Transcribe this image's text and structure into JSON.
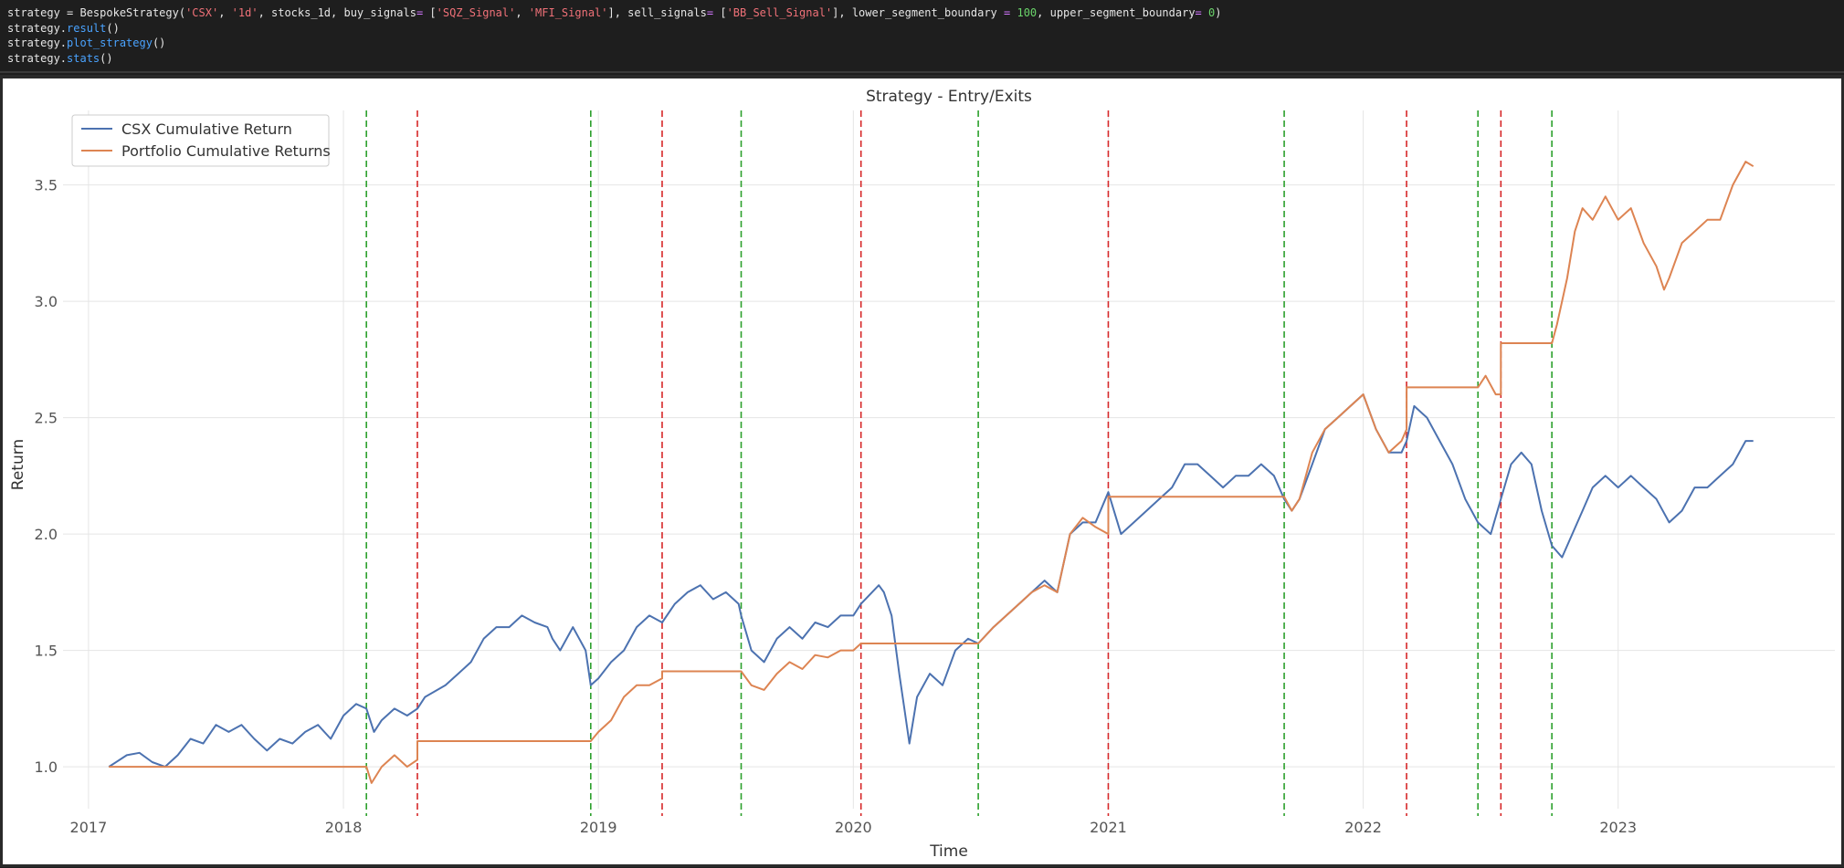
{
  "code_cell": {
    "lines": [
      [
        {
          "t": "strategy = BespokeStrategy(",
          "c": ""
        },
        {
          "t": "'CSX'",
          "c": "str"
        },
        {
          "t": ", ",
          "c": ""
        },
        {
          "t": "'1d'",
          "c": "str"
        },
        {
          "t": ", stocks_1d, buy_signals",
          "c": ""
        },
        {
          "t": "=",
          "c": "op"
        },
        {
          "t": " [",
          "c": ""
        },
        {
          "t": "'SQZ_Signal'",
          "c": "str"
        },
        {
          "t": ", ",
          "c": ""
        },
        {
          "t": "'MFI_Signal'",
          "c": "str"
        },
        {
          "t": "], sell_signals",
          "c": ""
        },
        {
          "t": "=",
          "c": "op"
        },
        {
          "t": " [",
          "c": ""
        },
        {
          "t": "'BB_Sell_Signal'",
          "c": "str"
        },
        {
          "t": "], lower_segment_boundary ",
          "c": ""
        },
        {
          "t": "=",
          "c": "op"
        },
        {
          "t": " ",
          "c": ""
        },
        {
          "t": "100",
          "c": "num"
        },
        {
          "t": ", upper_segment_boundary",
          "c": ""
        },
        {
          "t": "=",
          "c": "op"
        },
        {
          "t": " ",
          "c": ""
        },
        {
          "t": "0",
          "c": "num"
        },
        {
          "t": ")",
          "c": ""
        }
      ],
      [
        {
          "t": "strategy.",
          "c": ""
        },
        {
          "t": "result",
          "c": "fn"
        },
        {
          "t": "()",
          "c": ""
        }
      ],
      [
        {
          "t": "strategy.",
          "c": ""
        },
        {
          "t": "plot_strategy",
          "c": "fn"
        },
        {
          "t": "()",
          "c": ""
        }
      ],
      [
        {
          "t": "strategy.",
          "c": ""
        },
        {
          "t": "stats",
          "c": "fn"
        },
        {
          "t": "()",
          "c": ""
        }
      ]
    ]
  },
  "chart_data": {
    "type": "line",
    "title": "Strategy - Entry/Exits",
    "xlabel": "Time",
    "ylabel": "Return",
    "xlim": [
      2016.9,
      2023.85
    ],
    "ylim": [
      0.82,
      3.82
    ],
    "x_ticks": [
      2017,
      2018,
      2019,
      2020,
      2021,
      2022,
      2023
    ],
    "x_tick_labels": [
      "2017",
      "2018",
      "2019",
      "2020",
      "2021",
      "2022",
      "2023"
    ],
    "y_ticks": [
      1.0,
      1.5,
      2.0,
      2.5,
      3.0,
      3.5
    ],
    "y_tick_labels": [
      "1.0",
      "1.5",
      "2.0",
      "2.5",
      "3.0",
      "3.5"
    ],
    "grid": true,
    "legend_position": "top-left",
    "colors": {
      "csx": "#4c72b0",
      "portfolio": "#dd8452",
      "buy": "#2ca02c",
      "sell": "#d62728"
    },
    "buy_signal_lines": [
      2018.09,
      2018.97,
      2019.56,
      2020.49,
      2021.69,
      2022.45,
      2022.74
    ],
    "sell_signal_lines": [
      2018.29,
      2019.25,
      2020.03,
      2021.0,
      2022.17,
      2022.54
    ],
    "series": [
      {
        "name": "CSX Cumulative Return",
        "key": "csx",
        "points": [
          [
            2017.08,
            1.0
          ],
          [
            2017.15,
            1.05
          ],
          [
            2017.2,
            1.06
          ],
          [
            2017.25,
            1.02
          ],
          [
            2017.3,
            1.0
          ],
          [
            2017.35,
            1.05
          ],
          [
            2017.4,
            1.12
          ],
          [
            2017.45,
            1.1
          ],
          [
            2017.5,
            1.18
          ],
          [
            2017.55,
            1.15
          ],
          [
            2017.6,
            1.18
          ],
          [
            2017.65,
            1.12
          ],
          [
            2017.7,
            1.07
          ],
          [
            2017.75,
            1.12
          ],
          [
            2017.8,
            1.1
          ],
          [
            2017.85,
            1.15
          ],
          [
            2017.9,
            1.18
          ],
          [
            2017.95,
            1.12
          ],
          [
            2018.0,
            1.22
          ],
          [
            2018.05,
            1.27
          ],
          [
            2018.09,
            1.25
          ],
          [
            2018.12,
            1.15
          ],
          [
            2018.15,
            1.2
          ],
          [
            2018.2,
            1.25
          ],
          [
            2018.25,
            1.22
          ],
          [
            2018.29,
            1.25
          ],
          [
            2018.32,
            1.3
          ],
          [
            2018.4,
            1.35
          ],
          [
            2018.45,
            1.4
          ],
          [
            2018.5,
            1.45
          ],
          [
            2018.55,
            1.55
          ],
          [
            2018.6,
            1.6
          ],
          [
            2018.65,
            1.6
          ],
          [
            2018.7,
            1.65
          ],
          [
            2018.75,
            1.62
          ],
          [
            2018.8,
            1.6
          ],
          [
            2018.82,
            1.55
          ],
          [
            2018.85,
            1.5
          ],
          [
            2018.9,
            1.6
          ],
          [
            2018.95,
            1.5
          ],
          [
            2018.97,
            1.35
          ],
          [
            2019.0,
            1.38
          ],
          [
            2019.05,
            1.45
          ],
          [
            2019.1,
            1.5
          ],
          [
            2019.15,
            1.6
          ],
          [
            2019.2,
            1.65
          ],
          [
            2019.25,
            1.62
          ],
          [
            2019.3,
            1.7
          ],
          [
            2019.35,
            1.75
          ],
          [
            2019.4,
            1.78
          ],
          [
            2019.45,
            1.72
          ],
          [
            2019.5,
            1.75
          ],
          [
            2019.55,
            1.7
          ],
          [
            2019.56,
            1.65
          ],
          [
            2019.6,
            1.5
          ],
          [
            2019.65,
            1.45
          ],
          [
            2019.7,
            1.55
          ],
          [
            2019.75,
            1.6
          ],
          [
            2019.8,
            1.55
          ],
          [
            2019.85,
            1.62
          ],
          [
            2019.9,
            1.6
          ],
          [
            2019.95,
            1.65
          ],
          [
            2020.0,
            1.65
          ],
          [
            2020.03,
            1.7
          ],
          [
            2020.1,
            1.78
          ],
          [
            2020.12,
            1.75
          ],
          [
            2020.15,
            1.65
          ],
          [
            2020.18,
            1.4
          ],
          [
            2020.2,
            1.25
          ],
          [
            2020.22,
            1.1
          ],
          [
            2020.25,
            1.3
          ],
          [
            2020.3,
            1.4
          ],
          [
            2020.35,
            1.35
          ],
          [
            2020.4,
            1.5
          ],
          [
            2020.45,
            1.55
          ],
          [
            2020.49,
            1.53
          ],
          [
            2020.55,
            1.6
          ],
          [
            2020.6,
            1.65
          ],
          [
            2020.65,
            1.7
          ],
          [
            2020.7,
            1.75
          ],
          [
            2020.75,
            1.8
          ],
          [
            2020.8,
            1.75
          ],
          [
            2020.85,
            2.0
          ],
          [
            2020.9,
            2.05
          ],
          [
            2020.95,
            2.05
          ],
          [
            2021.0,
            2.18
          ],
          [
            2021.05,
            2.0
          ],
          [
            2021.1,
            2.05
          ],
          [
            2021.15,
            2.1
          ],
          [
            2021.2,
            2.15
          ],
          [
            2021.25,
            2.2
          ],
          [
            2021.3,
            2.3
          ],
          [
            2021.35,
            2.3
          ],
          [
            2021.4,
            2.25
          ],
          [
            2021.45,
            2.2
          ],
          [
            2021.5,
            2.25
          ],
          [
            2021.55,
            2.25
          ],
          [
            2021.6,
            2.3
          ],
          [
            2021.65,
            2.25
          ],
          [
            2021.69,
            2.15
          ],
          [
            2021.72,
            2.1
          ],
          [
            2021.75,
            2.15
          ],
          [
            2021.8,
            2.3
          ],
          [
            2021.85,
            2.45
          ],
          [
            2021.9,
            2.5
          ],
          [
            2021.95,
            2.55
          ],
          [
            2022.0,
            2.6
          ],
          [
            2022.05,
            2.45
          ],
          [
            2022.1,
            2.35
          ],
          [
            2022.15,
            2.35
          ],
          [
            2022.17,
            2.4
          ],
          [
            2022.2,
            2.55
          ],
          [
            2022.25,
            2.5
          ],
          [
            2022.3,
            2.4
          ],
          [
            2022.35,
            2.3
          ],
          [
            2022.4,
            2.15
          ],
          [
            2022.45,
            2.05
          ],
          [
            2022.5,
            2.0
          ],
          [
            2022.54,
            2.15
          ],
          [
            2022.58,
            2.3
          ],
          [
            2022.62,
            2.35
          ],
          [
            2022.66,
            2.3
          ],
          [
            2022.7,
            2.1
          ],
          [
            2022.74,
            1.95
          ],
          [
            2022.78,
            1.9
          ],
          [
            2022.82,
            2.0
          ],
          [
            2022.86,
            2.1
          ],
          [
            2022.9,
            2.2
          ],
          [
            2022.95,
            2.25
          ],
          [
            2023.0,
            2.2
          ],
          [
            2023.05,
            2.25
          ],
          [
            2023.1,
            2.2
          ],
          [
            2023.15,
            2.15
          ],
          [
            2023.2,
            2.05
          ],
          [
            2023.25,
            2.1
          ],
          [
            2023.3,
            2.2
          ],
          [
            2023.35,
            2.2
          ],
          [
            2023.4,
            2.25
          ],
          [
            2023.45,
            2.3
          ],
          [
            2023.5,
            2.4
          ],
          [
            2023.53,
            2.4
          ]
        ]
      },
      {
        "name": "Portfolio Cumulative Returns",
        "key": "portfolio",
        "points": [
          [
            2017.08,
            1.0
          ],
          [
            2018.09,
            1.0
          ],
          [
            2018.11,
            0.93
          ],
          [
            2018.15,
            1.0
          ],
          [
            2018.2,
            1.05
          ],
          [
            2018.25,
            1.0
          ],
          [
            2018.29,
            1.03
          ],
          [
            2018.29,
            1.11
          ],
          [
            2018.97,
            1.11
          ],
          [
            2019.0,
            1.15
          ],
          [
            2019.05,
            1.2
          ],
          [
            2019.1,
            1.3
          ],
          [
            2019.15,
            1.35
          ],
          [
            2019.2,
            1.35
          ],
          [
            2019.25,
            1.38
          ],
          [
            2019.25,
            1.41
          ],
          [
            2019.56,
            1.41
          ],
          [
            2019.6,
            1.35
          ],
          [
            2019.65,
            1.33
          ],
          [
            2019.7,
            1.4
          ],
          [
            2019.75,
            1.45
          ],
          [
            2019.8,
            1.42
          ],
          [
            2019.85,
            1.48
          ],
          [
            2019.9,
            1.47
          ],
          [
            2019.95,
            1.5
          ],
          [
            2020.0,
            1.5
          ],
          [
            2020.03,
            1.53
          ],
          [
            2020.49,
            1.53
          ],
          [
            2020.55,
            1.6
          ],
          [
            2020.6,
            1.65
          ],
          [
            2020.65,
            1.7
          ],
          [
            2020.7,
            1.75
          ],
          [
            2020.75,
            1.78
          ],
          [
            2020.8,
            1.75
          ],
          [
            2020.85,
            2.0
          ],
          [
            2020.9,
            2.07
          ],
          [
            2020.95,
            2.03
          ],
          [
            2021.0,
            2.0
          ],
          [
            2021.0,
            2.16
          ],
          [
            2021.69,
            2.16
          ],
          [
            2021.72,
            2.1
          ],
          [
            2021.75,
            2.15
          ],
          [
            2021.8,
            2.35
          ],
          [
            2021.85,
            2.45
          ],
          [
            2021.9,
            2.5
          ],
          [
            2021.95,
            2.55
          ],
          [
            2022.0,
            2.6
          ],
          [
            2022.05,
            2.45
          ],
          [
            2022.1,
            2.35
          ],
          [
            2022.15,
            2.4
          ],
          [
            2022.17,
            2.45
          ],
          [
            2022.17,
            2.63
          ],
          [
            2022.45,
            2.63
          ],
          [
            2022.48,
            2.68
          ],
          [
            2022.52,
            2.6
          ],
          [
            2022.54,
            2.6
          ],
          [
            2022.54,
            2.82
          ],
          [
            2022.74,
            2.82
          ],
          [
            2022.76,
            2.9
          ],
          [
            2022.8,
            3.1
          ],
          [
            2022.83,
            3.3
          ],
          [
            2022.86,
            3.4
          ],
          [
            2022.9,
            3.35
          ],
          [
            2022.95,
            3.45
          ],
          [
            2023.0,
            3.35
          ],
          [
            2023.05,
            3.4
          ],
          [
            2023.1,
            3.25
          ],
          [
            2023.15,
            3.15
          ],
          [
            2023.18,
            3.05
          ],
          [
            2023.2,
            3.1
          ],
          [
            2023.25,
            3.25
          ],
          [
            2023.3,
            3.3
          ],
          [
            2023.35,
            3.35
          ],
          [
            2023.4,
            3.35
          ],
          [
            2023.45,
            3.5
          ],
          [
            2023.5,
            3.6
          ],
          [
            2023.53,
            3.58
          ]
        ]
      }
    ]
  }
}
